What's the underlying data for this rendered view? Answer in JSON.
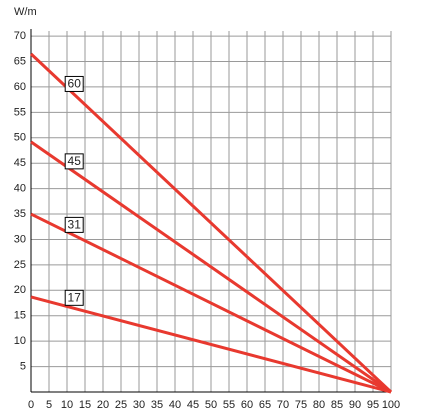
{
  "chart_data": {
    "type": "line",
    "y_label": "W/m",
    "series": [
      {
        "name": "60",
        "color": "#e8392f",
        "x": [
          0,
          100
        ],
        "values": [
          66.5,
          0
        ]
      },
      {
        "name": "45",
        "color": "#e8392f",
        "x": [
          0,
          100
        ],
        "values": [
          49.2,
          0
        ]
      },
      {
        "name": "31",
        "color": "#e8392f",
        "x": [
          0,
          100
        ],
        "values": [
          35,
          0
        ]
      },
      {
        "name": "17",
        "color": "#e8392f",
        "x": [
          0,
          100
        ],
        "values": [
          18.7,
          0
        ]
      }
    ],
    "xlim": [
      0,
      100
    ],
    "xticks": [
      0,
      5,
      10,
      15,
      20,
      25,
      30,
      35,
      40,
      45,
      50,
      55,
      60,
      65,
      70,
      75,
      80,
      85,
      90,
      95,
      100
    ],
    "ylim": [
      0,
      71
    ],
    "yticks": [
      5,
      10,
      15,
      20,
      25,
      30,
      35,
      40,
      45,
      50,
      55,
      60,
      65,
      70
    ],
    "grid": true
  }
}
